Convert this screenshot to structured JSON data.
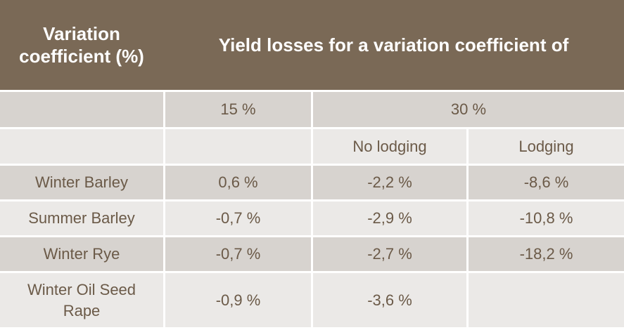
{
  "header": {
    "col1": "Variation coefficient (%)",
    "col2": "Yield losses for a variation coefficient of"
  },
  "subheader": {
    "c15": "15 %",
    "c30": "30 %",
    "no_lodging": "No lodging",
    "lodging": "Lodging"
  },
  "rows": [
    {
      "crop": "Winter Barley",
      "v15": "0,6 %",
      "no_lodging": "-2,2 %",
      "lodging": "-8,6 %"
    },
    {
      "crop": "Summer Barley",
      "v15": "-0,7 %",
      "no_lodging": "-2,9 %",
      "lodging": "-10,8 %"
    },
    {
      "crop": "Winter Rye",
      "v15": "-0,7 %",
      "no_lodging": "-2,7 %",
      "lodging": "-18,2 %"
    },
    {
      "crop": "Winter Oil Seed Rape",
      "v15": "-0,9 %",
      "no_lodging": "-3,6 %",
      "lodging": ""
    }
  ],
  "colors": {
    "header_bg": "#7a6956",
    "row_dark": "#d7d3cf",
    "row_light": "#ebe9e7",
    "text": "#6b5a48"
  }
}
